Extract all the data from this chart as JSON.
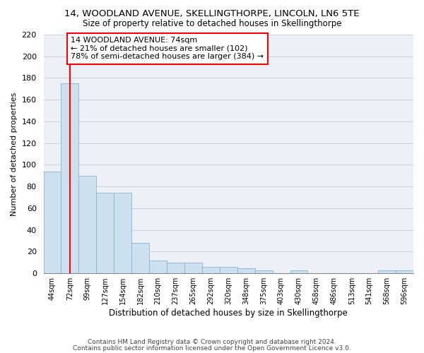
{
  "title": "14, WOODLAND AVENUE, SKELLINGTHORPE, LINCOLN, LN6 5TE",
  "subtitle": "Size of property relative to detached houses in Skellingthorpe",
  "xlabel": "Distribution of detached houses by size in Skellingthorpe",
  "ylabel": "Number of detached properties",
  "footer1": "Contains HM Land Registry data © Crown copyright and database right 2024.",
  "footer2": "Contains public sector information licensed under the Open Government Licence v3.0.",
  "bin_labels": [
    "44sqm",
    "72sqm",
    "99sqm",
    "127sqm",
    "154sqm",
    "182sqm",
    "210sqm",
    "237sqm",
    "265sqm",
    "292sqm",
    "320sqm",
    "348sqm",
    "375sqm",
    "403sqm",
    "430sqm",
    "458sqm",
    "486sqm",
    "513sqm",
    "541sqm",
    "568sqm",
    "596sqm"
  ],
  "bar_values": [
    94,
    175,
    90,
    74,
    74,
    28,
    12,
    10,
    10,
    6,
    6,
    5,
    3,
    0,
    3,
    0,
    0,
    0,
    0,
    3,
    3
  ],
  "bar_color": "#cce0f0",
  "bar_edge_color": "#8ab4d0",
  "red_line_x": 1.0,
  "annotation_text": "14 WOODLAND AVENUE: 74sqm\n← 21% of detached houses are smaller (102)\n78% of semi-detached houses are larger (384) →",
  "ylim": [
    0,
    220
  ],
  "yticks": [
    0,
    20,
    40,
    60,
    80,
    100,
    120,
    140,
    160,
    180,
    200,
    220
  ],
  "grid_color": "#c8d0dc",
  "background_color": "#edf1f7"
}
